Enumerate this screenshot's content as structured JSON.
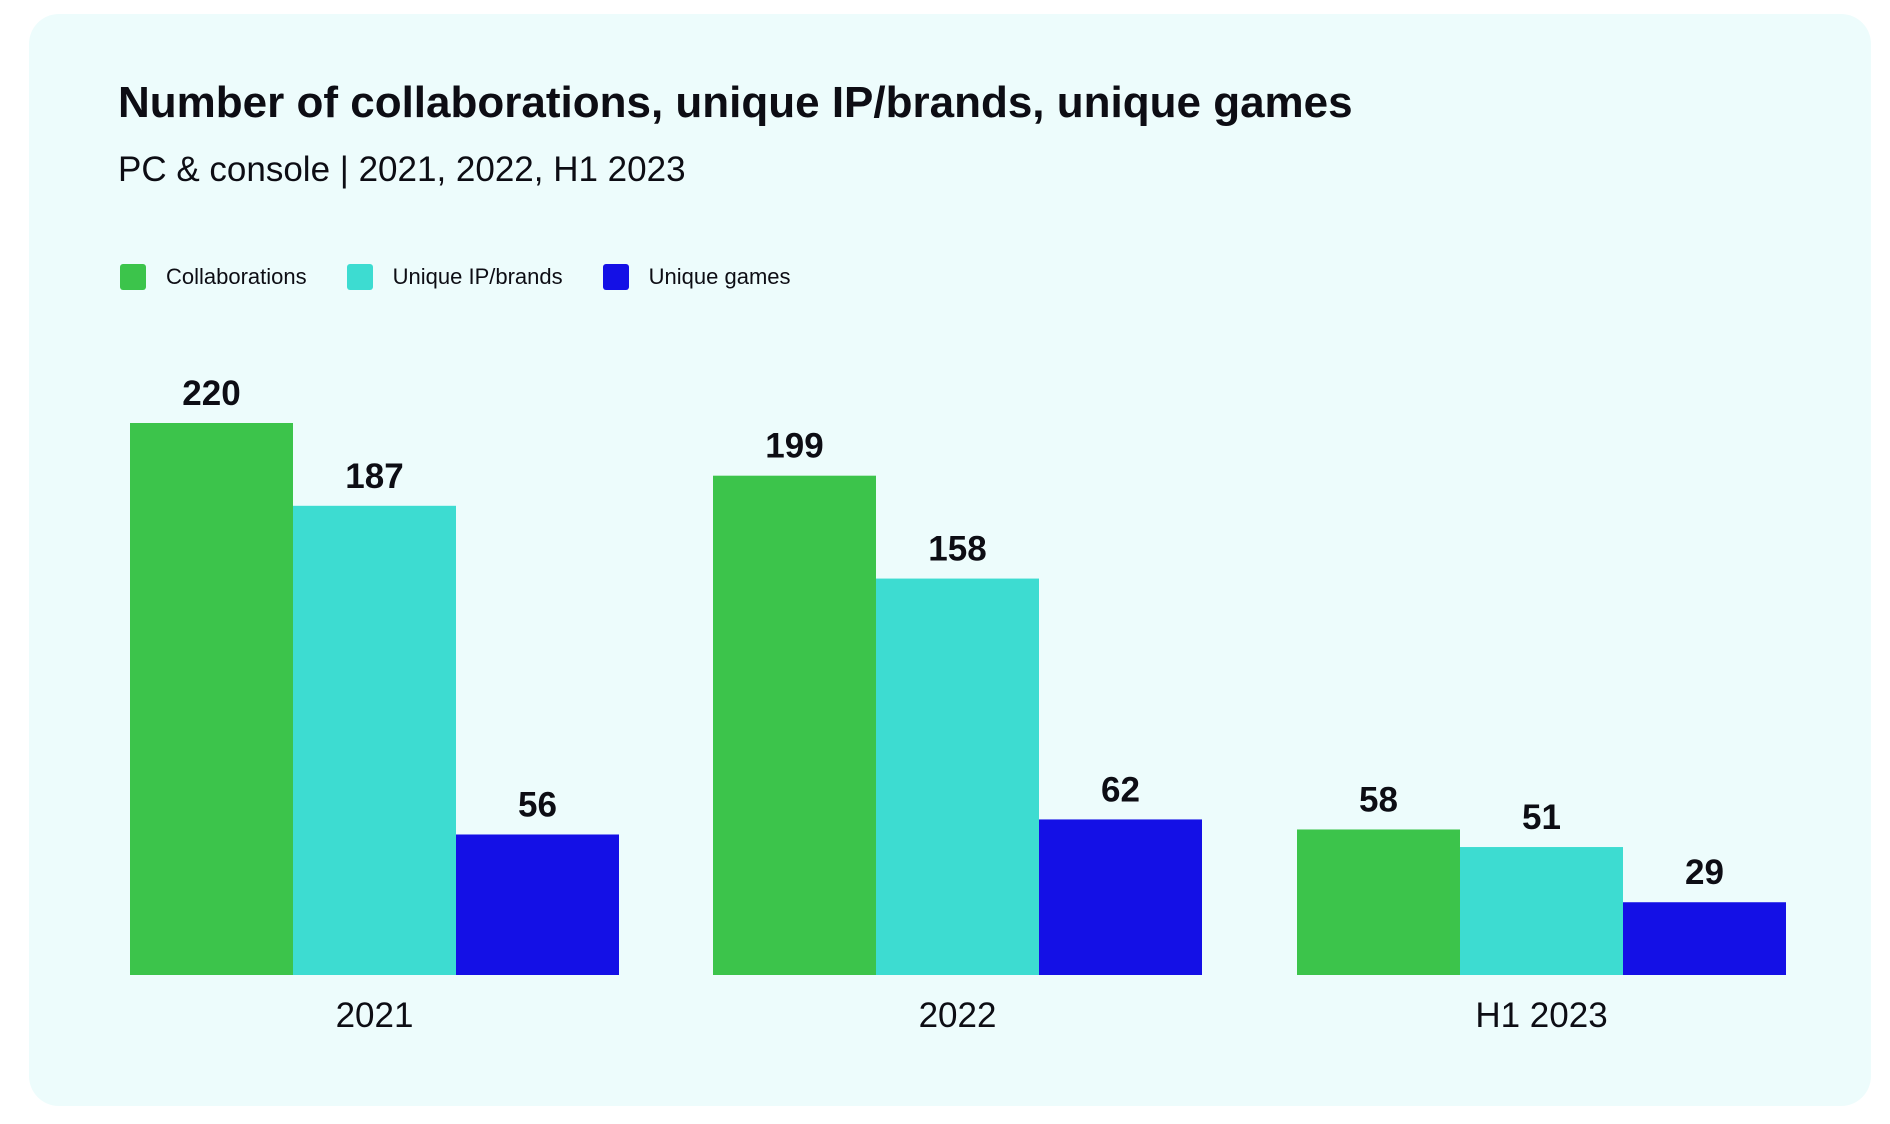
{
  "colors": {
    "background": "#edfcfc",
    "collaborations": "#3cc44b",
    "unique_ip_brands": "#3ddcd1",
    "unique_games": "#1410e6"
  },
  "chart_data": {
    "type": "bar",
    "title": "Number of collaborations, unique IP/brands, unique games",
    "subtitle": "PC & console | 2021, 2022, H1 2023",
    "xlabel": "",
    "ylabel": "",
    "ylim": [
      0,
      220
    ],
    "grid": false,
    "legend_position": "top-left",
    "categories": [
      "2021",
      "2022",
      "H1 2023"
    ],
    "series": [
      {
        "name": "Collaborations",
        "color": "#3cc44b",
        "values": [
          220,
          199,
          58
        ]
      },
      {
        "name": "Unique IP/brands",
        "color": "#3ddcd1",
        "values": [
          187,
          158,
          51
        ]
      },
      {
        "name": "Unique games",
        "color": "#1410e6",
        "values": [
          56,
          62,
          29
        ]
      }
    ]
  }
}
